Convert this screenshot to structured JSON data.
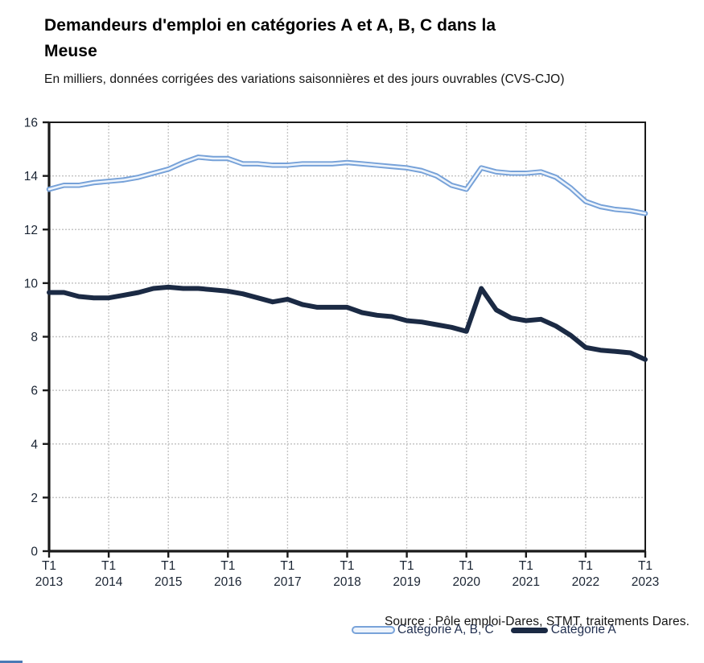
{
  "header": {
    "title": "Demandeurs d'emploi en catégories A et A, B, C dans la Meuse",
    "title_line1": "Demandeurs d'emploi en catégories A et A, B, C dans la",
    "title_line2": "Meuse",
    "subtitle": "En milliers, données corrigées des variations saisonnières et des jours ouvrables (CVS-CJO)"
  },
  "source": "Source : Pôle emploi-Dares, STMT, traitements Dares.",
  "legend": {
    "abc_label": "Catégorie A, B, C",
    "a_label": "Catégorie A"
  },
  "colors": {
    "series_abc_outer": "#76a1d8",
    "series_abc_inner": "#edf4fc",
    "series_a": "#1b2a44",
    "grid": "#c5c5c5",
    "axis": "#1a1a1a",
    "tick_label": "#1a2433",
    "legend_text": "#1f2d4e"
  },
  "chart_data": {
    "type": "line",
    "title": "Demandeurs d'emploi en catégories A et A, B, C dans la Meuse",
    "xlabel": "",
    "ylabel": "En milliers",
    "ylim": [
      0,
      16
    ],
    "ytick_step": 2,
    "grid": true,
    "grid_style": "dashed",
    "legend_position": "inside-bottom",
    "x": [
      "T1 2013",
      "T2 2013",
      "T3 2013",
      "T4 2013",
      "T1 2014",
      "T2 2014",
      "T3 2014",
      "T4 2014",
      "T1 2015",
      "T2 2015",
      "T3 2015",
      "T4 2015",
      "T1 2016",
      "T2 2016",
      "T3 2016",
      "T4 2016",
      "T1 2017",
      "T2 2017",
      "T3 2017",
      "T4 2017",
      "T1 2018",
      "T2 2018",
      "T3 2018",
      "T4 2018",
      "T1 2019",
      "T2 2019",
      "T3 2019",
      "T4 2019",
      "T1 2020",
      "T2 2020",
      "T3 2020",
      "T4 2020",
      "T1 2021",
      "T2 2021",
      "T3 2021",
      "T4 2021",
      "T1 2022",
      "T2 2022",
      "T3 2022",
      "T4 2022",
      "T1 2023"
    ],
    "xtick_every": 4,
    "xtick_labels": [
      {
        "top": "T1",
        "bottom": "2013"
      },
      {
        "top": "T1",
        "bottom": "2014"
      },
      {
        "top": "T1",
        "bottom": "2015"
      },
      {
        "top": "T1",
        "bottom": "2016"
      },
      {
        "top": "T1",
        "bottom": "2017"
      },
      {
        "top": "T1",
        "bottom": "2018"
      },
      {
        "top": "T1",
        "bottom": "2019"
      },
      {
        "top": "T1",
        "bottom": "2020"
      },
      {
        "top": "T1",
        "bottom": "2021"
      },
      {
        "top": "T1",
        "bottom": "2022"
      },
      {
        "top": "T1",
        "bottom": "2023"
      }
    ],
    "series": [
      {
        "name": "Catégorie A, B, C",
        "style": "outlined",
        "values": [
          13.5,
          13.65,
          13.65,
          13.75,
          13.8,
          13.85,
          13.95,
          14.1,
          14.25,
          14.5,
          14.7,
          14.65,
          14.65,
          14.45,
          14.45,
          14.4,
          14.4,
          14.45,
          14.45,
          14.45,
          14.5,
          14.45,
          14.4,
          14.35,
          14.3,
          14.2,
          14.0,
          13.65,
          13.5,
          14.3,
          14.15,
          14.1,
          14.1,
          14.15,
          13.95,
          13.55,
          13.05,
          12.85,
          12.75,
          12.7,
          12.6
        ]
      },
      {
        "name": "Catégorie A",
        "style": "solid",
        "values": [
          9.65,
          9.65,
          9.5,
          9.45,
          9.45,
          9.55,
          9.65,
          9.8,
          9.85,
          9.8,
          9.8,
          9.75,
          9.7,
          9.6,
          9.45,
          9.3,
          9.4,
          9.2,
          9.1,
          9.1,
          9.1,
          8.9,
          8.8,
          8.75,
          8.6,
          8.55,
          8.45,
          8.35,
          8.2,
          9.8,
          9.0,
          8.7,
          8.6,
          8.65,
          8.4,
          8.05,
          7.6,
          7.5,
          7.45,
          7.4,
          7.15
        ]
      }
    ]
  }
}
